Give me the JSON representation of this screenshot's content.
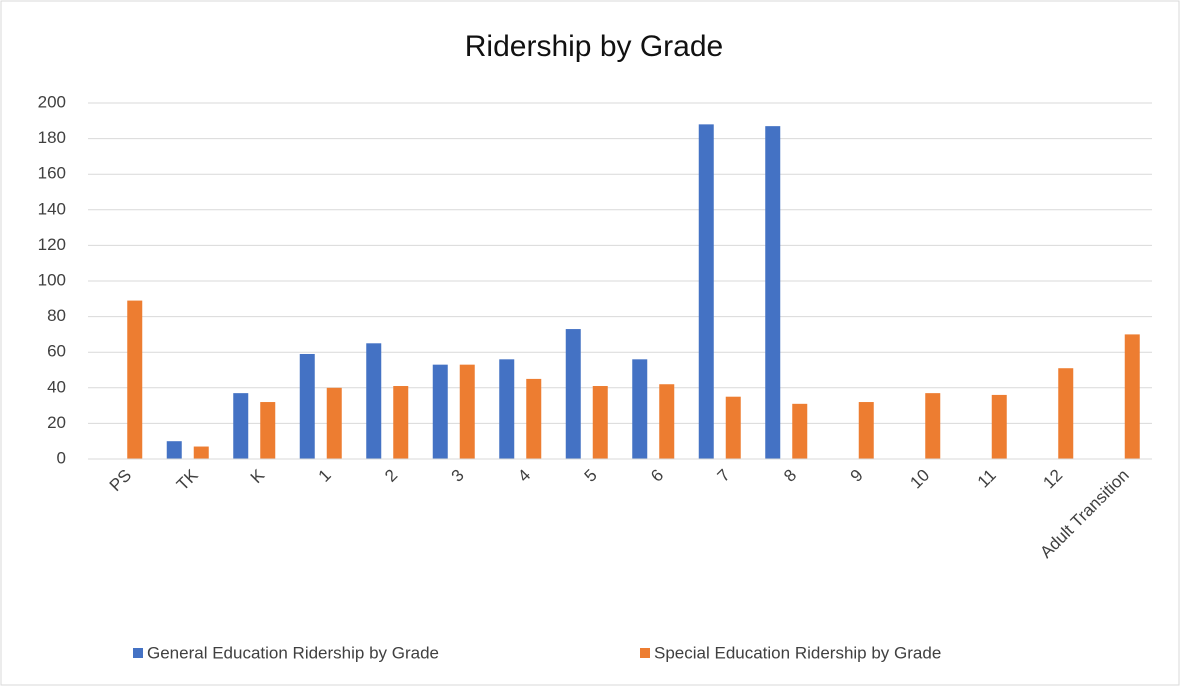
{
  "chart_data": {
    "type": "bar",
    "title": "Ridership by Grade",
    "categories": [
      "PS",
      "TK",
      "K",
      "1",
      "2",
      "3",
      "4",
      "5",
      "6",
      "7",
      "8",
      "9",
      "10",
      "11",
      "12",
      "Adult Transition"
    ],
    "series": [
      {
        "name": "General Education Ridership by Grade",
        "color": "#4472c4",
        "values": [
          null,
          10,
          37,
          59,
          65,
          53,
          56,
          73,
          56,
          188,
          187,
          null,
          null,
          null,
          null,
          null
        ]
      },
      {
        "name": "Special Education Ridership by Grade",
        "color": "#ed7d31",
        "values": [
          89,
          7,
          32,
          40,
          41,
          53,
          45,
          41,
          42,
          35,
          31,
          32,
          37,
          36,
          51,
          70
        ]
      }
    ],
    "ylim": [
      0,
      200
    ],
    "yticks": [
      0,
      20,
      40,
      60,
      80,
      100,
      120,
      140,
      160,
      180,
      200
    ],
    "grid": true,
    "legend": "bottom"
  }
}
